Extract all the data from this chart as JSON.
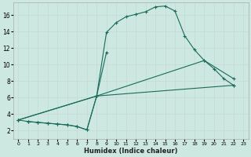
{
  "xlabel": "Humidex (Indice chaleur)",
  "bg_color": "#cce8e0",
  "grid_color": "#b8d8d0",
  "line_color": "#1a6b5a",
  "xlim": [
    -0.5,
    23.5
  ],
  "ylim": [
    1,
    17.5
  ],
  "xticks": [
    0,
    1,
    2,
    3,
    4,
    5,
    6,
    7,
    8,
    9,
    10,
    11,
    12,
    13,
    14,
    15,
    16,
    17,
    18,
    19,
    20,
    21,
    22,
    23
  ],
  "yticks": [
    2,
    4,
    6,
    8,
    10,
    12,
    14,
    16
  ],
  "line1_x": [
    0,
    1,
    2,
    3,
    4,
    5,
    6,
    7,
    8,
    9,
    10,
    11,
    12,
    13,
    14,
    15,
    16,
    17,
    18,
    19,
    20,
    21,
    22
  ],
  "line1_y": [
    3.3,
    3.1,
    3.0,
    2.9,
    2.8,
    2.7,
    2.5,
    2.1,
    6.2,
    13.9,
    15.1,
    15.8,
    16.1,
    16.4,
    17.0,
    17.1,
    16.5,
    13.5,
    11.8,
    10.5,
    9.5,
    8.3,
    7.5
  ],
  "line2_x": [
    1,
    2,
    3,
    4,
    5,
    6,
    7,
    8,
    9
  ],
  "line2_y": [
    3.1,
    3.0,
    2.9,
    2.8,
    2.7,
    2.5,
    2.1,
    6.2,
    11.5
  ],
  "line3_x": [
    0,
    8,
    19,
    22
  ],
  "line3_y": [
    3.3,
    6.2,
    10.5,
    8.3
  ],
  "line4_x": [
    0,
    8,
    22
  ],
  "line4_y": [
    3.3,
    6.2,
    7.5
  ]
}
